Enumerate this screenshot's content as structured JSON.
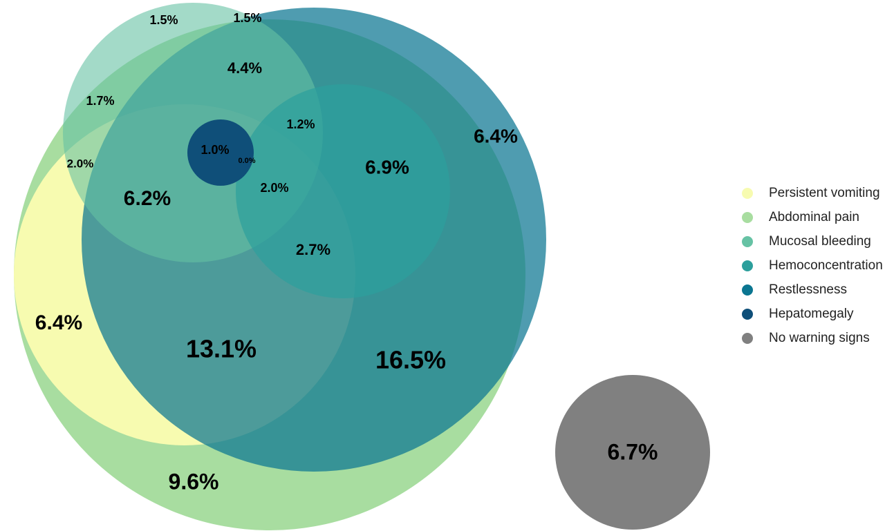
{
  "chart_data": {
    "type": "venn",
    "sets": [
      {
        "name": "Persistent vomiting",
        "color": "#f7fbb0"
      },
      {
        "name": "Abdominal pain",
        "color": "#a8dda0"
      },
      {
        "name": "Mucosal bleeding",
        "color": "#66c2a4"
      },
      {
        "name": "Hemoconcentration",
        "color": "#2c9f9c"
      },
      {
        "name": "Restlessness",
        "color": "#0b7691"
      },
      {
        "name": "Hepatomegaly",
        "color": "#0f4f79"
      },
      {
        "name": "No warning signs",
        "color": "#808080"
      }
    ],
    "values": [
      1.5,
      1.5,
      4.4,
      1.7,
      1.2,
      6.4,
      1.0,
      0.0,
      2.0,
      6.9,
      2.0,
      6.2,
      2.7,
      6.4,
      13.1,
      16.5,
      9.6,
      6.7
    ],
    "value_labels": [
      "1.5%",
      "1.5%",
      "4.4%",
      "1.7%",
      "1.2%",
      "6.4%",
      "1.0%",
      "0.0%",
      "2.0%",
      "6.9%",
      "2.0%",
      "6.2%",
      "2.7%",
      "6.4%",
      "13.1%",
      "16.5%",
      "9.6%",
      "6.7%"
    ]
  }
}
